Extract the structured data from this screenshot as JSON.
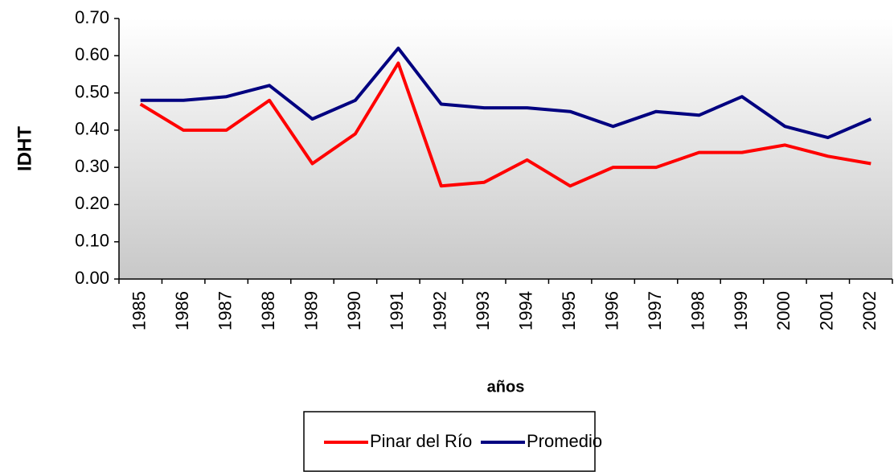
{
  "chart_data": {
    "type": "line",
    "x_label": "años",
    "y_label": "IDHT",
    "categories": [
      "1985",
      "1986",
      "1987",
      "1988",
      "1989",
      "1990",
      "1991",
      "1992",
      "1993",
      "1994",
      "1995",
      "1996",
      "1997",
      "1998",
      "1999",
      "2000",
      "2001",
      "2002"
    ],
    "series": [
      {
        "name": "Pinar del Río",
        "color": "#ff0000",
        "values": [
          0.47,
          0.4,
          0.4,
          0.48,
          0.31,
          0.39,
          0.58,
          0.25,
          0.26,
          0.32,
          0.25,
          0.3,
          0.3,
          0.34,
          0.34,
          0.36,
          0.33,
          0.31
        ]
      },
      {
        "name": "Promedio",
        "color": "#000080",
        "values": [
          0.48,
          0.48,
          0.49,
          0.52,
          0.43,
          0.48,
          0.62,
          0.47,
          0.46,
          0.46,
          0.45,
          0.41,
          0.45,
          0.44,
          0.49,
          0.41,
          0.38,
          0.43
        ]
      }
    ],
    "ylim": [
      0,
      0.7
    ],
    "yticks": [
      {
        "value": 0,
        "label": "0.00"
      },
      {
        "value": 0.1,
        "label": "0.10"
      },
      {
        "value": 0.2,
        "label": "0.20"
      },
      {
        "value": 0.3,
        "label": "0.30"
      },
      {
        "value": 0.4,
        "label": "0.40"
      },
      {
        "value": 0.5,
        "label": "0.50"
      },
      {
        "value": 0.6,
        "label": "0.60"
      },
      {
        "value": 0.7,
        "label": "0.70"
      }
    ],
    "legend": "bottom"
  }
}
